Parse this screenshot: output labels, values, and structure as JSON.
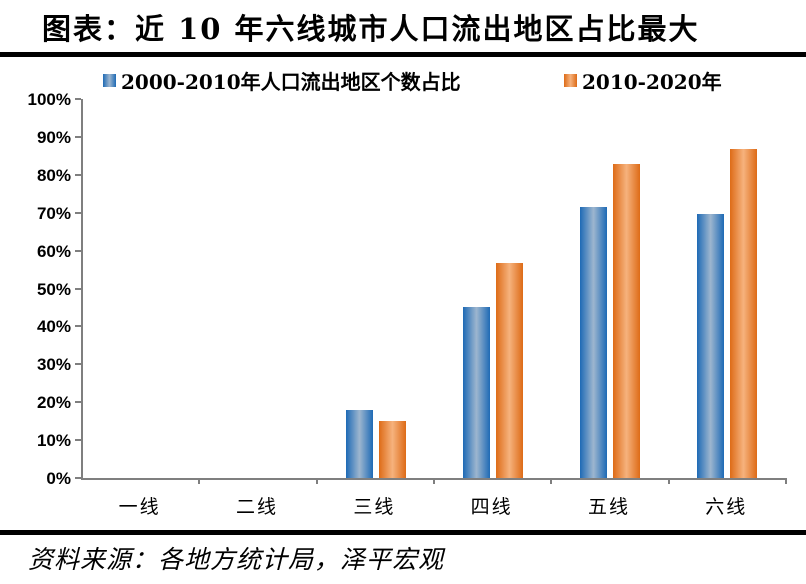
{
  "header": {
    "title": "图表：近 10 年六线城市人口流出地区占比最大"
  },
  "footer": {
    "source": "资料来源：各地方统计局，泽平宏观"
  },
  "legend": [
    {
      "label": "2000-2010年人口流出地区个数占比"
    },
    {
      "label": "2010-2020年"
    }
  ],
  "colors": {
    "series1_dark": "#1E6AB5",
    "series1_light": "#9DB6CF",
    "series2_dark": "#DD6B17",
    "series2_light": "#F6B27D",
    "axis": "#7F7F7F",
    "text": "#000000",
    "rule": "#000000"
  },
  "chart_data": {
    "type": "bar",
    "title": "图表：近 10 年六线城市人口流出地区占比最大",
    "categories": [
      "一线",
      "二线",
      "三线",
      "四线",
      "五线",
      "六线"
    ],
    "series": [
      {
        "name": "2000-2010年人口流出地区个数占比",
        "color_dark": "#1E6AB5",
        "color_light": "#9DB6CF",
        "values": [
          0,
          0,
          17.9,
          45.2,
          71.4,
          69.6
        ]
      },
      {
        "name": "2010-2020年",
        "color_dark": "#DD6B17",
        "color_light": "#F6B27D",
        "values": [
          0,
          0,
          15.0,
          56.7,
          82.9,
          86.7
        ]
      }
    ],
    "xlabel": "",
    "ylabel": "",
    "ylim": [
      0,
      100
    ],
    "y_tick_step": 10,
    "y_tick_labels": [
      "0%",
      "10%",
      "20%",
      "30%",
      "40%",
      "50%",
      "60%",
      "70%",
      "80%",
      "90%",
      "100%"
    ],
    "grid": false,
    "legend_position": "top"
  }
}
